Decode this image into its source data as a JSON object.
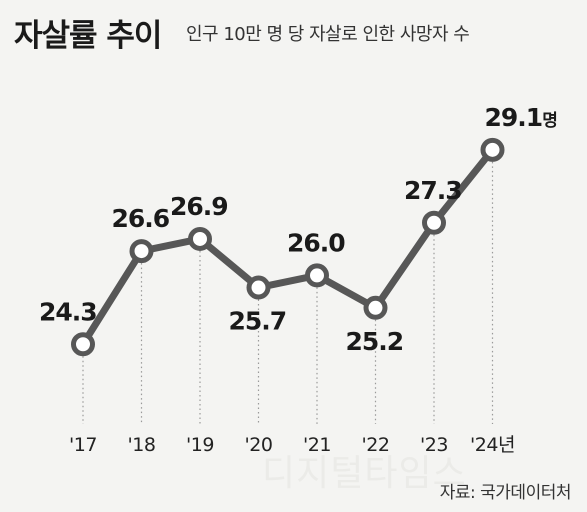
{
  "header": {
    "title": "자살률 추이",
    "subtitle": "인구 10만 명 당 자살로 인한 사망자 수"
  },
  "footer": {
    "source": "자료: 국가데이터처",
    "watermark": "디지털타임스"
  },
  "chart_data": {
    "type": "line",
    "title": "자살률 추이",
    "subtitle": "인구 10만 명 당 자살로 인한 사망자 수",
    "categories": [
      "'17",
      "'18",
      "'19",
      "'20",
      "'21",
      "'22",
      "'23",
      "'24년"
    ],
    "values": [
      24.3,
      26.6,
      26.9,
      25.7,
      26.0,
      25.2,
      27.3,
      29.1
    ],
    "data_labels": [
      "24.3",
      "26.6",
      "26.9",
      "25.7",
      "26.0",
      "25.2",
      "27.3",
      "29.1"
    ],
    "unit": "명",
    "xlabel": "",
    "ylabel": "",
    "grid": "vertical-dotted",
    "legend": "none",
    "colors": {
      "line": "#575757",
      "marker_fill": "#ffffff",
      "text": "#1a1a1a",
      "guide": "#9a9a9a",
      "background": "#f4f4f2"
    }
  }
}
